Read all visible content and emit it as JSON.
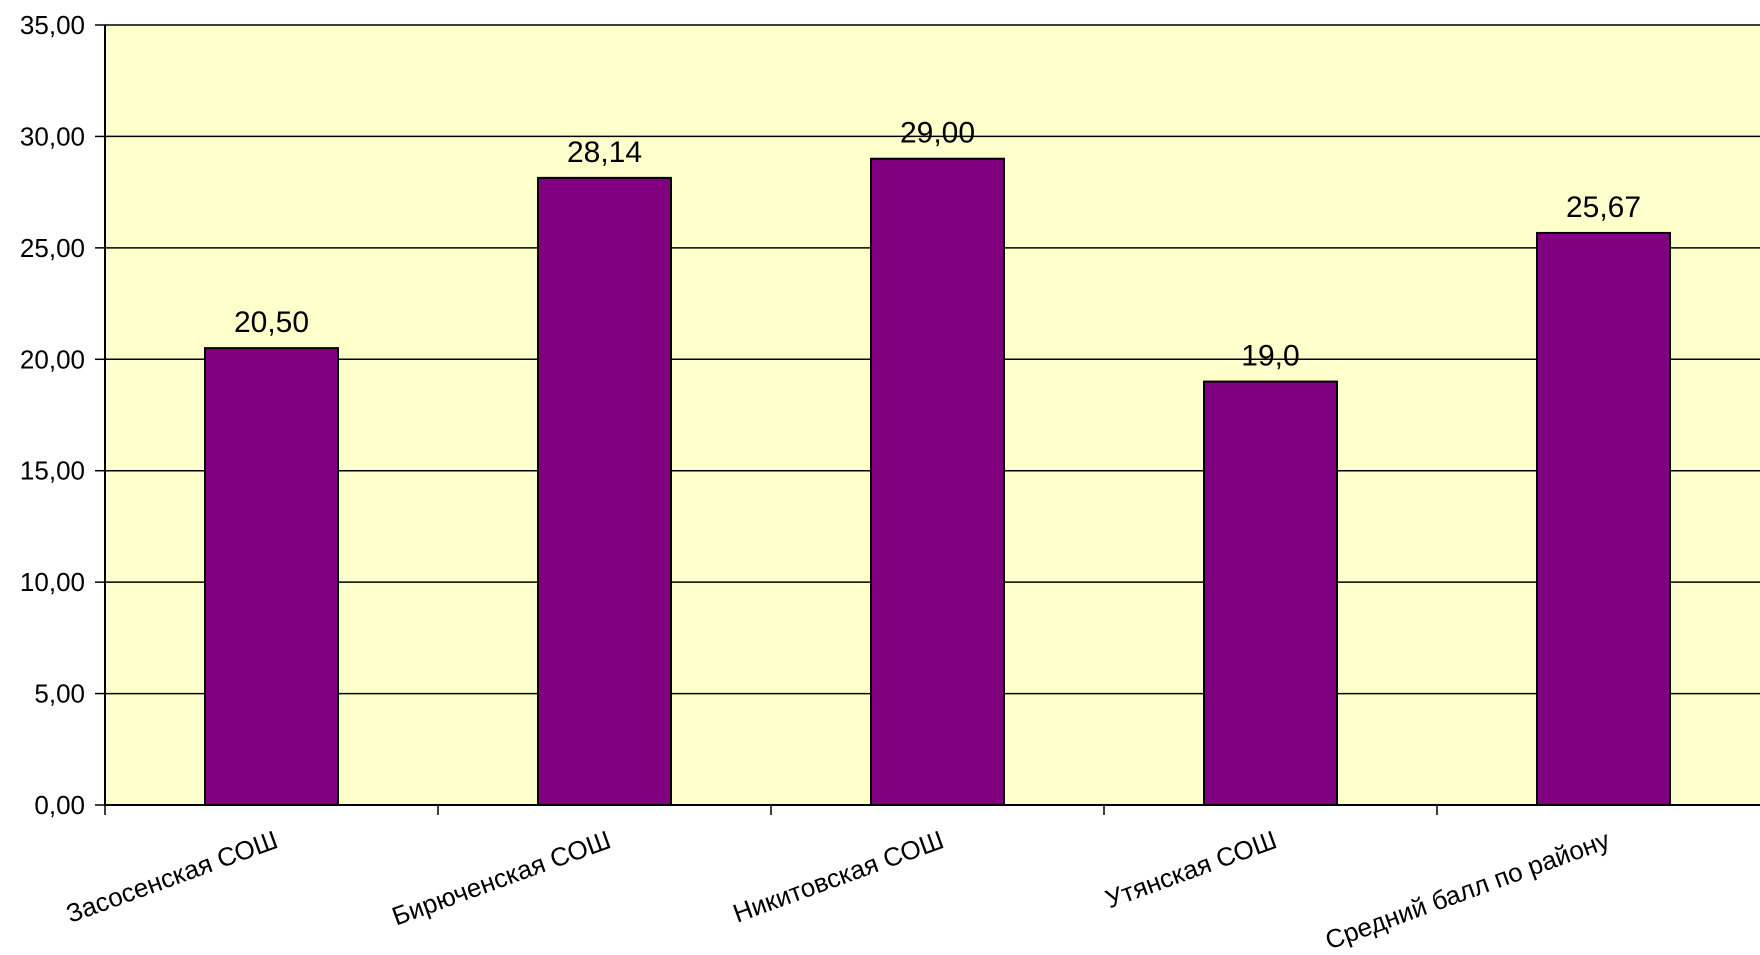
{
  "chart_data": {
    "type": "bar",
    "title": "",
    "xlabel": "",
    "ylabel": "",
    "categories": [
      "Засосенская  СОШ",
      "Бирюченская СОШ",
      "Никитовская СОШ",
      "Утянская СОШ",
      "Средний балл по району"
    ],
    "values": [
      20.5,
      28.14,
      29.0,
      19.0,
      25.67
    ],
    "data_labels": [
      "20,50",
      "28,14",
      "29,00",
      "19,0",
      "25,67"
    ],
    "ylim": [
      0,
      35
    ],
    "y_ticks": [
      "0,00",
      "5,00",
      "10,00",
      "15,00",
      "20,00",
      "25,00",
      "30,00",
      "35,00"
    ],
    "grid": true,
    "legend": "none",
    "colors": {
      "bar": "#800080",
      "plot_background": "#FFFFCC",
      "gridline": "#000000"
    }
  }
}
